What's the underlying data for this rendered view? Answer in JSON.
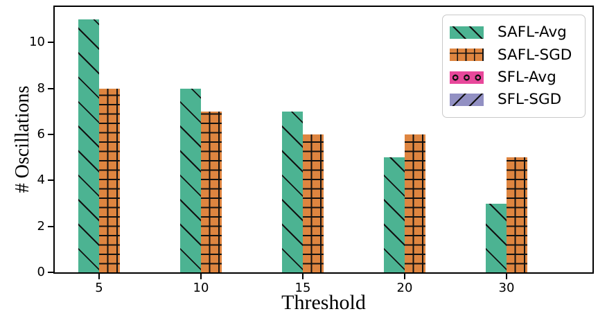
{
  "chart_data": {
    "type": "bar",
    "title": "",
    "xlabel": "Threshold",
    "ylabel": "# Oscillations",
    "categories": [
      "5",
      "10",
      "15",
      "20",
      "30"
    ],
    "series": [
      {
        "name": "SAFL-Avg",
        "color": "#4cb392",
        "hatch": "diagonal",
        "values": [
          11,
          8,
          7,
          5,
          3
        ]
      },
      {
        "name": "SAFL-SGD",
        "color": "#de8540",
        "hatch": "grid",
        "values": [
          8,
          7,
          6,
          6,
          5
        ]
      },
      {
        "name": "SFL-Avg",
        "color": "#e8489b",
        "hatch": "circles",
        "values": [
          0,
          0,
          0,
          0,
          0
        ]
      },
      {
        "name": "SFL-SGD",
        "color": "#9290c3",
        "hatch": "back-diagonal",
        "values": [
          0,
          0,
          0,
          0,
          0
        ]
      }
    ],
    "yticks": [
      0,
      2,
      4,
      6,
      8,
      10
    ],
    "ylim": [
      0,
      11.55
    ],
    "grid": false,
    "legend_position": "upper right",
    "hatch_color": "#111111",
    "spine_color": "#000000"
  }
}
